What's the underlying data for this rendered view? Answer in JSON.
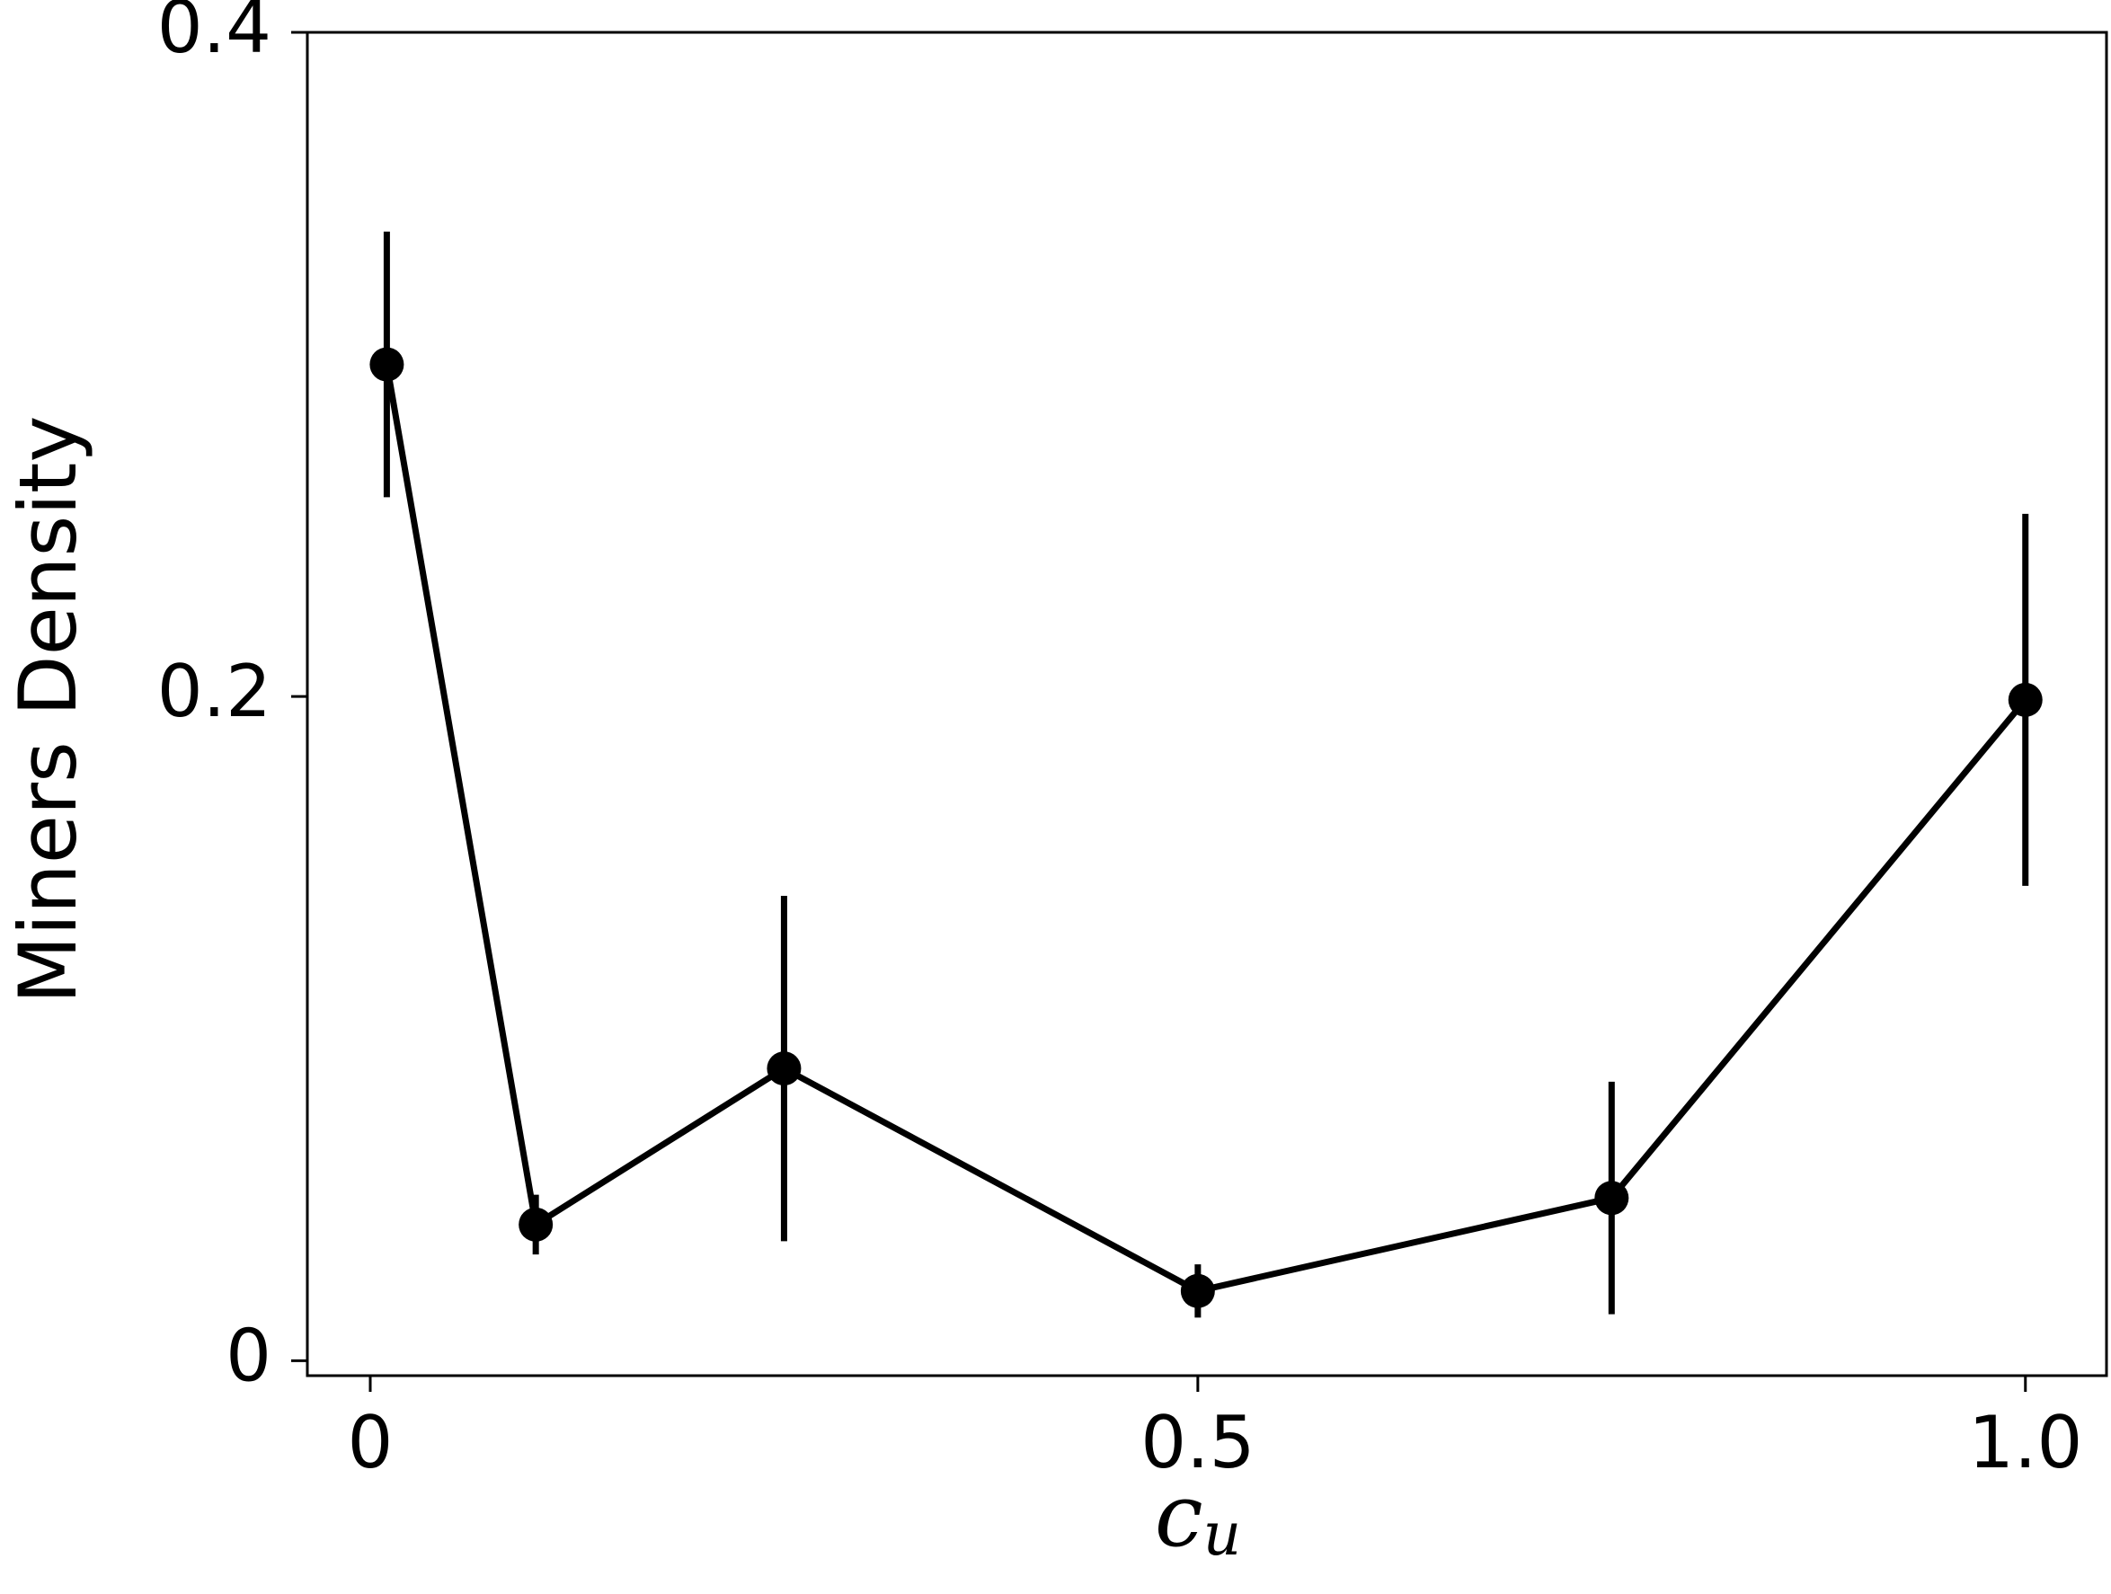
{
  "chart_data": {
    "type": "line",
    "ylabel": "Miners Density",
    "xlabel": "c",
    "xlabel_sub": "u",
    "x": [
      0.01,
      0.1,
      0.25,
      0.5,
      0.75,
      1.0
    ],
    "series": [
      {
        "color": "#000000",
        "values": [
          0.3,
          0.041,
          0.088,
          0.021,
          0.049,
          0.199
        ],
        "errors": [
          0.04,
          0.009,
          0.052,
          0.008,
          0.035,
          0.056
        ]
      }
    ],
    "xlim": [
      -0.038,
      1.049
    ],
    "ylim": [
      -0.0045,
      0.4
    ],
    "xticks": [
      0,
      0.5,
      {
        "value": 1.0,
        "label": "1.0"
      }
    ],
    "yticks": [
      0,
      0.2,
      0.4
    ]
  }
}
